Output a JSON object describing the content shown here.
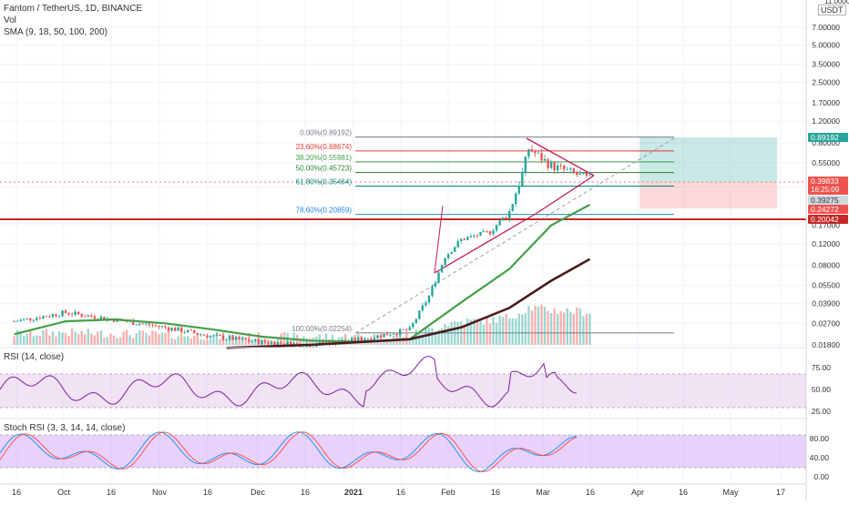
{
  "header": {
    "symbol": "Fantom / TetherUS, 1D, BINANCE",
    "vol": "Vol",
    "sma": "SMA (9, 18, 50, 100, 200)"
  },
  "rsi_panel": {
    "label": "RSI (14, close)",
    "ticks": [
      "75.00",
      "50.00",
      "25.00"
    ]
  },
  "stoch_panel": {
    "label": "Stoch RSI (3, 3, 14, 14, close)",
    "ticks": [
      "80.00",
      "40.00",
      "0.00"
    ]
  },
  "price_axis": {
    "currency": "USDT",
    "top_partial": "11.0000",
    "ticks": [
      "7.00000",
      "5.00000",
      "3.50000",
      "2.50000",
      "1.70000",
      "1.20000",
      "0.80000",
      "0.55000",
      "0.35000",
      "0.17000",
      "0.12000",
      "0.08000",
      "0.05500",
      "0.03900",
      "0.02700",
      "0.01800"
    ],
    "badges": [
      {
        "label": "0.89192",
        "color": "#26a69a"
      },
      {
        "label": "0.39833",
        "sub": "16:25:09",
        "color": "#ef5350"
      },
      {
        "label": "0.39275",
        "color": "#cfd8dc"
      },
      {
        "label": "0.24272",
        "color": "#ef5350"
      },
      {
        "label": "0.20042",
        "color": "#c62828"
      }
    ]
  },
  "time_axis": {
    "labels": [
      "16",
      "Oct",
      "16",
      "Nov",
      "16",
      "Dec",
      "16",
      "2021",
      "16",
      "Feb",
      "16",
      "Mar",
      "16",
      "Apr",
      "16",
      "May",
      "17"
    ]
  },
  "fib_levels": [
    {
      "label": "0.00%(0.89192)",
      "color": "#787b86"
    },
    {
      "label": "23.60%(0.68674)",
      "color": "#e53935"
    },
    {
      "label": "38.20%(0.55981)",
      "color": "#43a047"
    },
    {
      "label": "50.00%(0.45723)",
      "color": "#2e7d32"
    },
    {
      "label": "61.80%(0.35464)",
      "color": "#00897b"
    },
    {
      "label": "78.60%(0.20859)",
      "color": "#1e88e5"
    },
    {
      "label": "100.00%(0.02254)",
      "color": "#787b86"
    }
  ],
  "colors": {
    "up": "#26a69a",
    "down": "#ef5350",
    "sma50": "#43a047",
    "sma200": "#4a1c1c",
    "rsi": "#7b1fa2",
    "k": "#2196f3",
    "d": "#ff5252",
    "support": "#c62828"
  },
  "chart_data": {
    "type": "candlestick",
    "title": "Fantom / TetherUS, 1D, BINANCE",
    "scale": "log",
    "x_range": [
      "2020-09-12",
      "2021-05-20"
    ],
    "y_range": [
      0.016,
      12
    ],
    "series": [
      {
        "name": "close",
        "x": [
          "2020-09-15",
          "2020-10-01",
          "2020-10-16",
          "2020-11-01",
          "2020-11-16",
          "2020-12-01",
          "2020-12-16",
          "2021-01-01",
          "2021-01-16",
          "2021-01-22",
          "2021-01-27",
          "2021-02-01",
          "2021-02-10",
          "2021-02-16",
          "2021-02-20",
          "2021-02-22",
          "2021-03-01",
          "2021-03-08",
          "2021-03-13"
        ],
        "values": [
          0.028,
          0.033,
          0.029,
          0.025,
          0.021,
          0.019,
          0.018,
          0.02,
          0.024,
          0.045,
          0.095,
          0.13,
          0.15,
          0.22,
          0.45,
          0.72,
          0.52,
          0.45,
          0.4
        ]
      },
      {
        "name": "SMA 50",
        "x": [
          "2020-09-15",
          "2020-10-01",
          "2020-10-16",
          "2020-11-01",
          "2020-11-16",
          "2020-12-01",
          "2020-12-16",
          "2021-01-01",
          "2021-01-16",
          "2021-02-01",
          "2021-02-16",
          "2021-03-01",
          "2021-03-13"
        ],
        "values": [
          0.022,
          0.028,
          0.029,
          0.027,
          0.024,
          0.021,
          0.0195,
          0.019,
          0.02,
          0.04,
          0.075,
          0.17,
          0.25
        ]
      },
      {
        "name": "SMA 200",
        "x": [
          "2020-11-20",
          "2020-12-16",
          "2021-01-01",
          "2021-01-16",
          "2021-02-01",
          "2021-02-16",
          "2021-03-01",
          "2021-03-13"
        ],
        "values": [
          0.017,
          0.018,
          0.019,
          0.02,
          0.025,
          0.036,
          0.06,
          0.09
        ]
      }
    ],
    "annotations": [
      "0.00%(0.89192)",
      "23.60%(0.68674)",
      "38.20%(0.55981)",
      "50.00%(0.45723)",
      "61.80%(0.35464)",
      "78.60%(0.20859)",
      "100.00%(0.02254)"
    ],
    "support_level": 0.20042,
    "rsi": {
      "ylim": [
        0,
        100
      ],
      "band": [
        30,
        70
      ]
    },
    "stoch_rsi": {
      "ylim": [
        0,
        100
      ],
      "band": [
        20,
        80
      ]
    },
    "grid": true
  }
}
